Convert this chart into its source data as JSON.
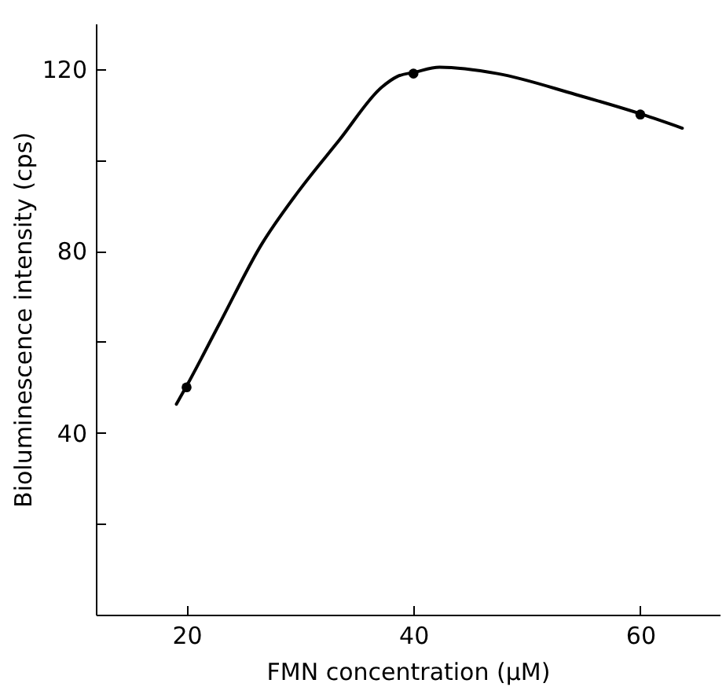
{
  "chart_data": {
    "type": "line",
    "xlabel": "FMN concentration (μM)",
    "ylabel": "Bioluminescence  intensity (cps)",
    "xlim": [
      12,
      67
    ],
    "ylim": [
      0,
      130
    ],
    "xticks": [
      20,
      40,
      60
    ],
    "yticks": [
      {
        "value": 20,
        "label": null
      },
      40,
      {
        "value": 60,
        "label": null
      },
      80,
      {
        "value": 100,
        "label": null
      },
      120
    ],
    "series": [
      {
        "color": "#000000",
        "marker": "none",
        "line_style": "solid",
        "x": [
          19.1,
          20,
          22.9,
          26.6,
          29.8,
          33.5,
          37.2,
          38.6,
          40.1,
          42.3,
          47.4,
          54.3,
          60.2,
          63.7
        ],
        "values": [
          46.3,
          50.3,
          64,
          81.4,
          92.9,
          104.5,
          116,
          118.4,
          119.3,
          120.4,
          119,
          114.4,
          110,
          107
        ]
      },
      {
        "type": "scatter",
        "color": "#000000",
        "marker": "circle",
        "x": [
          20,
          40,
          60
        ],
        "values": [
          50,
          119,
          110
        ]
      }
    ]
  }
}
